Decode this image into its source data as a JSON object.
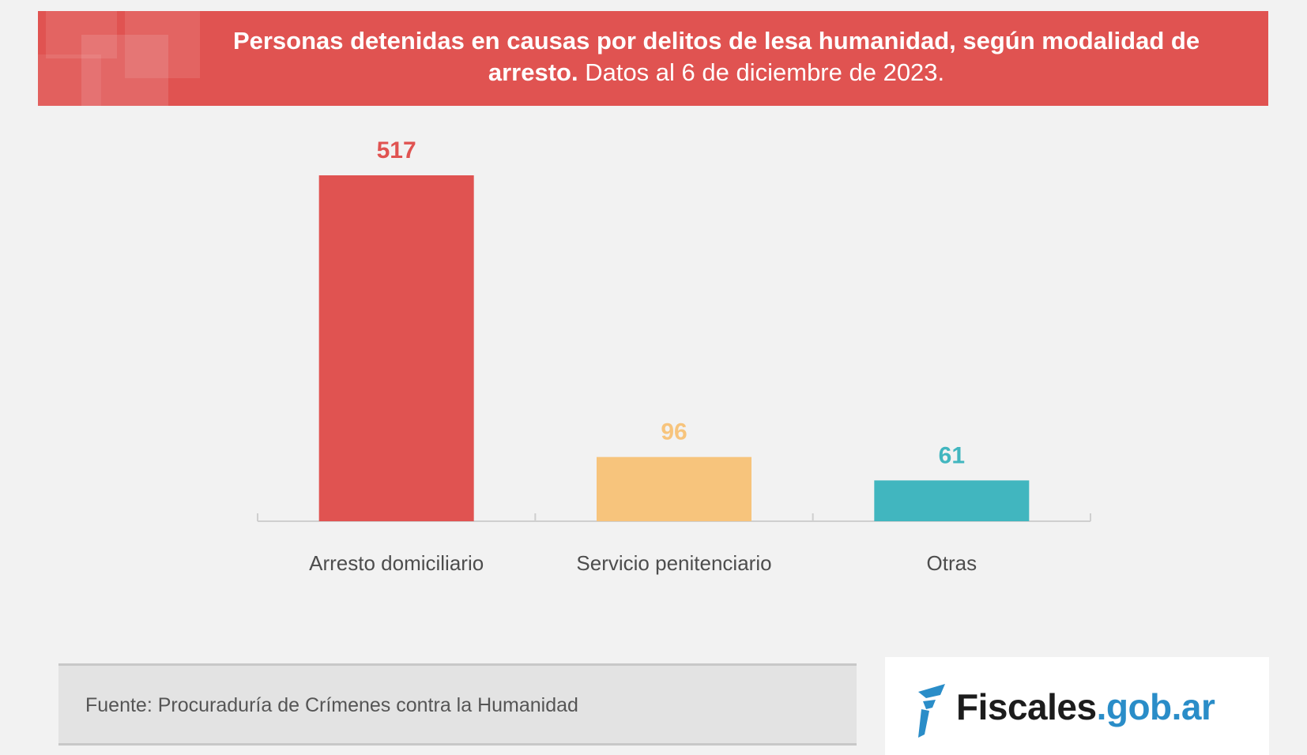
{
  "header": {
    "title_bold": "Personas detenidas en causas por delitos de lesa humanidad, según modalidad de arresto.",
    "title_normal": "Datos al 6 de diciembre de 2023."
  },
  "colors": {
    "banner": "#e05351",
    "bar_arresto": "#e05351",
    "bar_servicio": "#f7c47c",
    "bar_otras": "#41b6bf",
    "label_arresto": "#e05351",
    "label_servicio": "#f7c47c",
    "label_otras": "#41b6bf",
    "logo_accent": "#2a8dc8"
  },
  "chart_data": {
    "type": "bar",
    "title": "Personas detenidas en causas por delitos de lesa humanidad, según modalidad de arresto. Datos al 6 de diciembre de 2023.",
    "categories": [
      "Arresto domiciliario",
      "Servicio penitenciario",
      "Otras"
    ],
    "values": [
      517,
      96,
      61
    ],
    "value_labels": [
      "517",
      "96",
      "61"
    ],
    "xlabel": "",
    "ylabel": "",
    "ylim": [
      0,
      517
    ],
    "grid": false,
    "legend": "none"
  },
  "footer": {
    "source": "Fuente: Procuraduría de Crímenes contra la Humanidad",
    "logo_part1": "Fiscales",
    "logo_part2": ".gob.ar"
  }
}
